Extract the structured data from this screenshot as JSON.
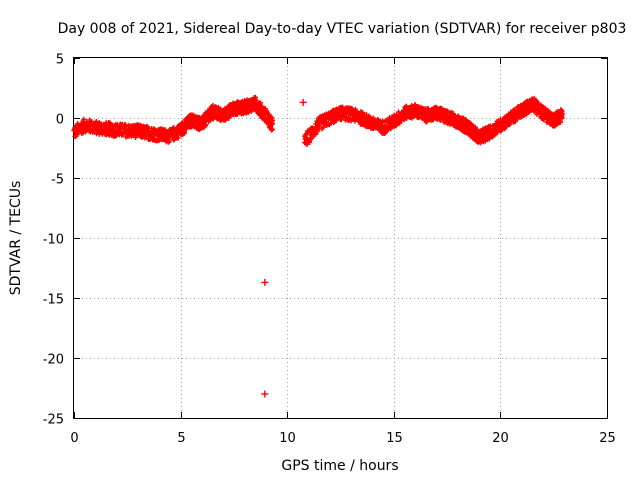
{
  "chart_data": {
    "type": "scatter",
    "title": "Day 008 of 2021, Sidereal Day-to-day VTEC variation (SDTVAR) for receiver p803",
    "xlabel": "GPS time / hours",
    "ylabel": "SDTVAR / TECUs",
    "xlim": [
      0,
      25
    ],
    "ylim": [
      -25,
      5
    ],
    "x_ticks": [
      0,
      5,
      10,
      15,
      20,
      25
    ],
    "y_ticks": [
      -25,
      -20,
      -15,
      -10,
      -5,
      0,
      5
    ],
    "grid": true,
    "marker": "plus",
    "series_color": "#ff0000",
    "series": [
      {
        "name": "p803 SDTVAR",
        "approx_trend": {
          "x": [
            0.0,
            0.5,
            1.0,
            2.0,
            3.0,
            4.0,
            4.5,
            5.0,
            5.5,
            6.0,
            6.5,
            7.0,
            7.5,
            8.0,
            8.5,
            9.0,
            9.3,
            10.8,
            11.5,
            12.0,
            12.5,
            13.0,
            13.5,
            14.0,
            14.5,
            15.0,
            15.5,
            16.0,
            16.5,
            17.0,
            17.5,
            18.0,
            18.5,
            19.0,
            19.5,
            20.0,
            20.5,
            21.0,
            21.5,
            22.0,
            22.5,
            22.9
          ],
          "y": [
            -1.2,
            -0.6,
            -0.8,
            -1.0,
            -1.1,
            -1.4,
            -1.5,
            -1.0,
            -0.2,
            -0.5,
            0.5,
            0.2,
            0.8,
            0.9,
            1.2,
            0.2,
            -0.6,
            -2.0,
            -0.5,
            0.0,
            0.4,
            0.3,
            0.0,
            -0.5,
            -0.8,
            -0.3,
            0.4,
            0.6,
            0.2,
            0.4,
            0.1,
            -0.3,
            -0.8,
            -1.6,
            -1.2,
            -0.6,
            0.0,
            0.6,
            1.2,
            0.4,
            -0.2,
            0.3
          ]
        },
        "outliers": [
          {
            "x": 8.95,
            "y": -13.7
          },
          {
            "x": 8.95,
            "y": -23.0
          },
          {
            "x": 10.75,
            "y": 1.3
          }
        ]
      }
    ]
  }
}
